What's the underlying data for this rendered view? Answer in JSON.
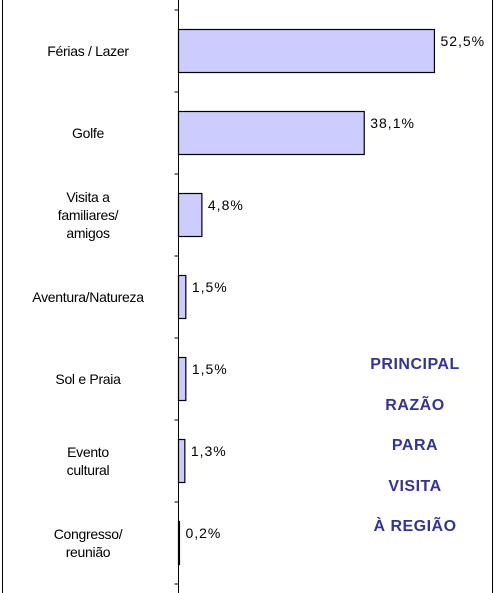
{
  "chart_data": {
    "type": "bar",
    "orientation": "horizontal",
    "annotation": "PRINCIPAL\nRAZÃO\nPARA\nVISITA\nÀ REGIÃO",
    "categories": [
      "Férias / Lazer",
      "Golfe",
      "Visita a\nfamiliares/\namigos",
      "Aventura/Natureza",
      "Sol e Praia",
      "Evento\ncultural",
      "Congresso/\nreunião"
    ],
    "values": [
      52.5,
      38.1,
      4.8,
      1.5,
      1.5,
      1.3,
      0.2
    ],
    "value_labels": [
      "52,5%",
      "38,1%",
      "4,8%",
      "1,5%",
      "1,5%",
      "1,3%",
      "0,2%"
    ],
    "color": "#ccccff",
    "xlim": [
      0,
      60
    ]
  }
}
